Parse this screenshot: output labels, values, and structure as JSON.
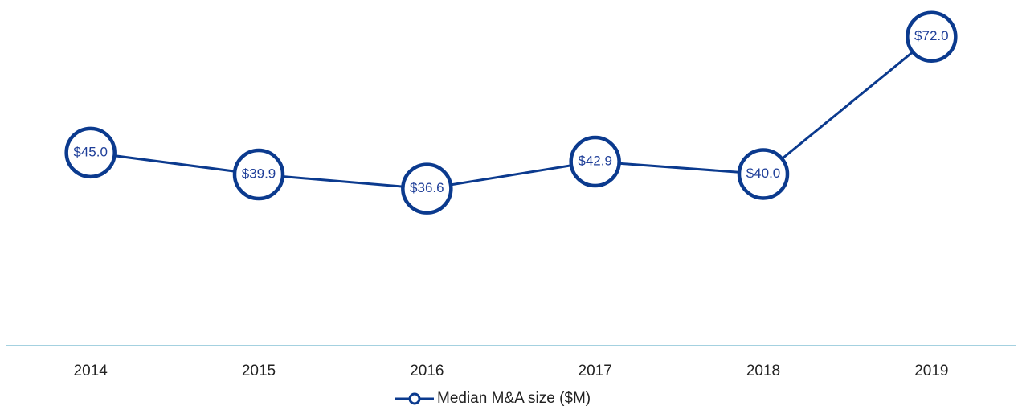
{
  "chart_data": {
    "type": "line",
    "categories": [
      "2014",
      "2015",
      "2016",
      "2017",
      "2018",
      "2019"
    ],
    "series": [
      {
        "name": "Median M&A size ($M)",
        "color": "#0b3a8e",
        "values": [
          45.0,
          39.9,
          36.6,
          42.9,
          40.0,
          72.0
        ],
        "value_labels": [
          "$45.0",
          "$39.9",
          "$36.6",
          "$42.9",
          "$40.0",
          "$72.0"
        ]
      }
    ],
    "ylim": [
      0,
      80
    ],
    "axis_color": "#4aa3c0",
    "legend": "bottom"
  }
}
